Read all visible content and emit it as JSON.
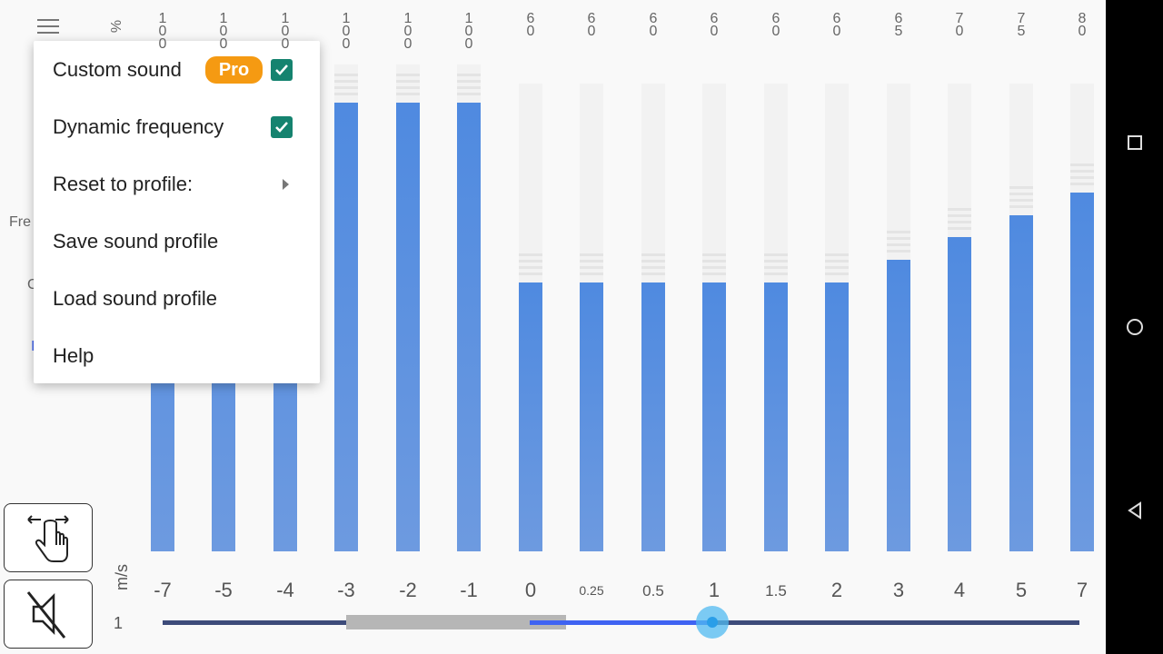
{
  "unit_percent": "%",
  "side_labels": [
    "Fre",
    "C",
    "I"
  ],
  "bars": [
    {
      "value": "100",
      "fill": 100
    },
    {
      "value": "100",
      "fill": 100
    },
    {
      "value": "100",
      "fill": 100
    },
    {
      "value": "100",
      "fill": 100
    },
    {
      "value": "100",
      "fill": 100
    },
    {
      "value": "100",
      "fill": 100
    },
    {
      "value": "60",
      "fill": 60
    },
    {
      "value": "60",
      "fill": 60
    },
    {
      "value": "60",
      "fill": 60
    },
    {
      "value": "60",
      "fill": 60
    },
    {
      "value": "60",
      "fill": 60
    },
    {
      "value": "60",
      "fill": 60
    },
    {
      "value": "65",
      "fill": 65
    },
    {
      "value": "70",
      "fill": 70
    },
    {
      "value": "75",
      "fill": 75
    },
    {
      "value": "80",
      "fill": 80
    }
  ],
  "speed_labels": [
    "-7",
    "-5",
    "-4",
    "-3",
    "-2",
    "-1",
    "0",
    "0.25",
    "0.5",
    "1",
    "1.5",
    "2",
    "3",
    "4",
    "5",
    "7"
  ],
  "axis_unit": "m/s",
  "slider": {
    "label": "1",
    "value": "1"
  },
  "menu": {
    "items": [
      {
        "label": "Custom sound",
        "badge": "Pro",
        "checked": true
      },
      {
        "label": "Dynamic frequency",
        "checked": true
      },
      {
        "label": "Reset to profile:",
        "submenu": true
      },
      {
        "label": "Save sound profile"
      },
      {
        "label": "Load sound profile"
      },
      {
        "label": "Help"
      }
    ]
  },
  "colors": {
    "bar": "#4f8ae0",
    "accent": "#15836f",
    "pro_badge": "#f59a12",
    "slider_track": "#3d4b7a",
    "slider_active": "#3f63f2",
    "thumb": "#2a9ee8"
  },
  "icons": [
    "menu-icon",
    "swipe-hand-icon",
    "speaker-muted-icon",
    "recent-apps-icon",
    "home-icon",
    "back-icon"
  ]
}
